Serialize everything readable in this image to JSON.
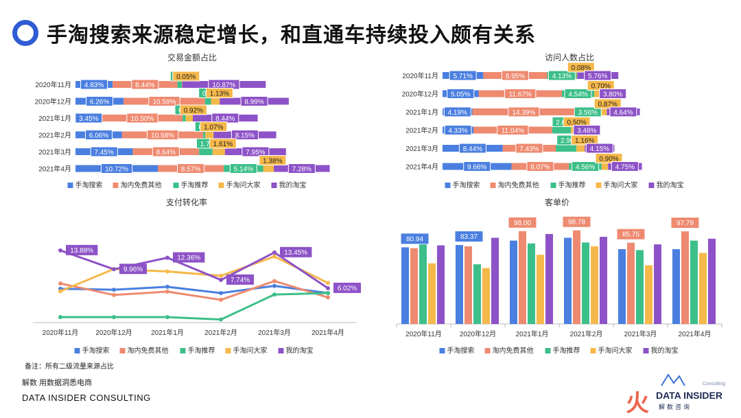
{
  "header": {
    "title": "手淘搜索来源稳定增长，和直通车持续投入颇有关系"
  },
  "colors": {
    "accent": "#2f5bd3"
  },
  "chart_data": [
    {
      "type": "bar",
      "stacked": true,
      "orientation": "horizontal",
      "title": "交易金额占比",
      "categories": [
        "2020年11月",
        "2020年12月",
        "2021年1月",
        "2021年2月",
        "2021年3月",
        "2021年4月"
      ],
      "series": [
        {
          "name": "手淘搜索",
          "color": "#4a7fe0",
          "values": [
            4.83,
            6.26,
            3.45,
            6.06,
            7.45,
            10.72
          ],
          "labels": [
            "4.83%",
            "6.26%",
            "3.45%",
            "6.06%",
            "7.45%",
            "10.72%"
          ]
        },
        {
          "name": "淘内免费其他",
          "color": "#ee8a70",
          "values": [
            8.44,
            10.59,
            10.5,
            10.58,
            8.64,
            8.57
          ],
          "labels": [
            "8.44%",
            "10.59%",
            "10.50%",
            "10.58%",
            "8.64%",
            "8.57%"
          ]
        },
        {
          "name": "手淘推荐",
          "color": "#3cbf88",
          "values": [
            0.57,
            0.79,
            0.4,
            0.26,
            1.75,
            5.14
          ],
          "labels": [
            "0.57%",
            "0.79%",
            "0.40%",
            "0.26%",
            "1.75%",
            "5.14%"
          ]
        },
        {
          "name": "手淘问大家",
          "color": "#f5b84a",
          "values": [
            0.05,
            1.13,
            0.92,
            1.07,
            1.61,
            1.38
          ],
          "labels": [
            "0.05%",
            "1.13%",
            "0.92%",
            "1.07%",
            "1.61%",
            "1.38%"
          ]
        },
        {
          "name": "我的淘宝",
          "color": "#8d52c7",
          "values": [
            10.87,
            8.99,
            8.44,
            8.15,
            7.95,
            7.28
          ],
          "labels": [
            "10.87%",
            "8.99%",
            "8.44%",
            "8.15%",
            "7.95%",
            "7.28%"
          ]
        }
      ],
      "legend": "bottom"
    },
    {
      "type": "bar",
      "stacked": true,
      "orientation": "horizontal",
      "title": "访问人数占比",
      "categories": [
        "2020年11月",
        "2020年12月",
        "2021年1月",
        "2021年2月",
        "2021年3月",
        "2021年4月"
      ],
      "series": [
        {
          "name": "手淘搜索",
          "color": "#4a7fe0",
          "values": [
            5.71,
            5.05,
            4.19,
            4.33,
            8.44,
            9.66
          ],
          "labels": [
            "5.71%",
            "5.05%",
            "4.19%",
            "4.33%",
            "8.44%",
            "9.66%"
          ]
        },
        {
          "name": "淘内免费其他",
          "color": "#ee8a70",
          "values": [
            8.95,
            11.67,
            14.39,
            11.04,
            7.43,
            8.07
          ],
          "labels": [
            "8.95%",
            "11.67%",
            "14.39%",
            "11.04%",
            "7.43%",
            "8.07%"
          ]
        },
        {
          "name": "手淘推荐",
          "color": "#3cbf88",
          "values": [
            4.13,
            4.54,
            3.56,
            2.62,
            2.9,
            4.56
          ],
          "labels": [
            "4.13%",
            "4.54%",
            "3.56%",
            "2.62%",
            "2.90%",
            "4.56%"
          ]
        },
        {
          "name": "手淘问大家",
          "color": "#f5b84a",
          "values": [
            0.08,
            0.7,
            0.87,
            0.5,
            1.16,
            0.9
          ],
          "labels": [
            "0.08%",
            "0.70%",
            "0.87%",
            "0.50%",
            "1.16%",
            "0.90%"
          ]
        },
        {
          "name": "我的淘宝",
          "color": "#8d52c7",
          "values": [
            5.76,
            3.8,
            4.64,
            3.48,
            4.15,
            4.75
          ],
          "labels": [
            "5.76%",
            "3.80%",
            "4.64%",
            "3.48%",
            "4.15%",
            "4.75%"
          ]
        }
      ],
      "legend": "bottom"
    },
    {
      "type": "line",
      "title": "支付转化率",
      "x": [
        "2020年11月",
        "2020年12月",
        "2021年1月",
        "2021年2月",
        "2021年3月",
        "2021年4月"
      ],
      "ylim": [
        0,
        16
      ],
      "series": [
        {
          "name": "手淘搜索",
          "color": "#4a7fe0",
          "values": [
            5.9,
            5.7,
            6.3,
            5.0,
            6.5,
            5.0
          ]
        },
        {
          "name": "淘内免费其他",
          "color": "#ee8a70",
          "values": [
            7.0,
            4.6,
            5.3,
            3.6,
            7.5,
            4.1
          ]
        },
        {
          "name": "手淘推荐",
          "color": "#3cbf88",
          "values": [
            0.0,
            0.0,
            0.0,
            -0.5,
            4.7,
            5.0
          ]
        },
        {
          "name": "手淘问大家",
          "color": "#f5b84a",
          "values": [
            5.4,
            10.0,
            9.5,
            8.6,
            12.6,
            7.1
          ]
        },
        {
          "name": "我的淘宝",
          "color": "#8d52c7",
          "values": [
            13.88,
            9.96,
            12.36,
            7.74,
            13.45,
            6.02
          ]
        }
      ],
      "data_labels": [
        {
          "series": "我的淘宝",
          "index": 0,
          "text": "13.88%"
        },
        {
          "series": "我的淘宝",
          "index": 1,
          "text": "9.96%"
        },
        {
          "series": "我的淘宝",
          "index": 2,
          "text": "12.36%"
        },
        {
          "series": "我的淘宝",
          "index": 3,
          "text": "7.74%"
        },
        {
          "series": "我的淘宝",
          "index": 4,
          "text": "13.45%"
        },
        {
          "series": "我的淘宝",
          "index": 5,
          "text": "6.02%"
        }
      ],
      "legend": "bottom"
    },
    {
      "type": "bar",
      "title": "客单价",
      "categories": [
        "2020年11月",
        "2020年12月",
        "2021年1月",
        "2021年2月",
        "2021年3月",
        "2021年4月"
      ],
      "ylim": [
        0,
        120
      ],
      "series": [
        {
          "name": "手淘搜索",
          "color": "#4a7fe0",
          "values": [
            80.94,
            83.37,
            88.0,
            91.0,
            79.0,
            79.0
          ]
        },
        {
          "name": "淘内免费其他",
          "color": "#ee8a70",
          "values": [
            80.0,
            82.0,
            98.0,
            98.78,
            85.75,
            97.79
          ]
        },
        {
          "name": "手淘推荐",
          "color": "#3cbf88",
          "values": [
            84.0,
            63.0,
            85.0,
            86.0,
            78.0,
            88.0
          ]
        },
        {
          "name": "手淘问大家",
          "color": "#f5b84a",
          "values": [
            64.0,
            59.0,
            73.0,
            82.0,
            62.0,
            75.0
          ]
        },
        {
          "name": "我的淘宝",
          "color": "#8d52c7",
          "values": [
            83.0,
            91.0,
            95.0,
            92.0,
            84.0,
            90.0
          ]
        }
      ],
      "data_labels": [
        {
          "series": "手淘搜索",
          "index": 0,
          "text": "80.94"
        },
        {
          "series": "手淘搜索",
          "index": 1,
          "text": "83.37"
        },
        {
          "series": "淘内免费其他",
          "index": 2,
          "text": "98.00"
        },
        {
          "series": "淘内免费其他",
          "index": 3,
          "text": "98.78"
        },
        {
          "series": "淘内免费其他",
          "index": 4,
          "text": "85.75"
        },
        {
          "series": "淘内免费其他",
          "index": 5,
          "text": "97.79"
        }
      ],
      "legend": "bottom"
    }
  ],
  "note": "备注：所有二级流量来源占比",
  "footer": {
    "line1": "解数 用数据洞悉电商",
    "line2": "DATA INSIDER CONSULTING"
  },
  "brand": {
    "name": "DATA INSIDER",
    "sub": "解数咨询",
    "consult": "Consulting",
    "fire": "火"
  }
}
